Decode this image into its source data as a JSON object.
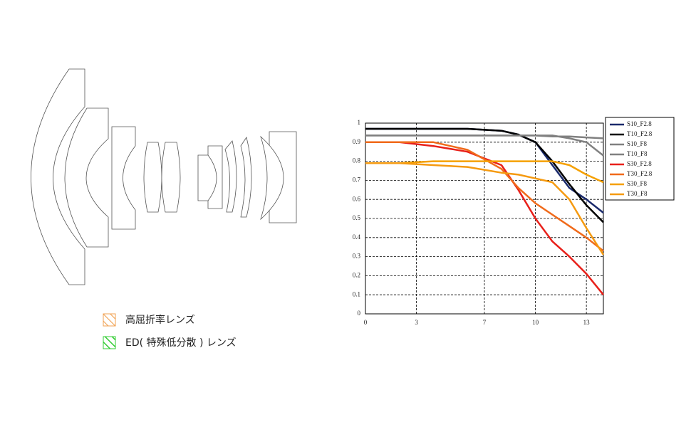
{
  "lens_legend": [
    {
      "label": "高屈折率レンズ",
      "color": "#f0a050"
    },
    {
      "label": "ED( 特殊低分散 ) レンズ",
      "color": "#33cc33"
    }
  ],
  "chart_data": {
    "type": "line",
    "x": [
      0,
      2,
      4,
      6,
      8,
      9,
      10,
      11,
      12,
      13,
      14
    ],
    "xlim": [
      0,
      14
    ],
    "xticks": [
      0,
      3,
      7,
      10,
      13
    ],
    "ylim": [
      0,
      1
    ],
    "yticks": [
      0,
      0.1,
      0.2,
      0.3,
      0.4,
      0.5,
      0.6,
      0.7,
      0.8,
      0.9,
      1
    ],
    "grid": true,
    "series": [
      {
        "name": "S10_F2.8",
        "color": "#1a2a6c",
        "values": [
          0.97,
          0.97,
          0.97,
          0.97,
          0.96,
          0.94,
          0.9,
          0.78,
          0.66,
          0.6,
          0.53
        ]
      },
      {
        "name": "T10_F2.8",
        "color": "#000000",
        "values": [
          0.97,
          0.97,
          0.97,
          0.97,
          0.96,
          0.94,
          0.9,
          0.8,
          0.68,
          0.57,
          0.48
        ]
      },
      {
        "name": "S10_F8",
        "color": "#808080",
        "values": [
          0.935,
          0.935,
          0.935,
          0.935,
          0.935,
          0.935,
          0.935,
          0.93,
          0.93,
          0.925,
          0.92
        ]
      },
      {
        "name": "T10_F8",
        "color": "#808080",
        "values": [
          0.935,
          0.935,
          0.935,
          0.935,
          0.935,
          0.935,
          0.935,
          0.935,
          0.92,
          0.9,
          0.83
        ]
      },
      {
        "name": "S30_F2.8",
        "color": "#e8201a",
        "values": [
          0.9,
          0.9,
          0.88,
          0.85,
          0.78,
          0.65,
          0.5,
          0.38,
          0.3,
          0.21,
          0.1
        ]
      },
      {
        "name": "T30_F2.8",
        "color": "#f06a1a",
        "values": [
          0.9,
          0.9,
          0.9,
          0.86,
          0.76,
          0.66,
          0.58,
          0.52,
          0.46,
          0.4,
          0.33
        ]
      },
      {
        "name": "S30_F8",
        "color": "#f5a000",
        "values": [
          0.79,
          0.79,
          0.8,
          0.8,
          0.8,
          0.8,
          0.8,
          0.8,
          0.78,
          0.73,
          0.69
        ]
      },
      {
        "name": "T30_F8",
        "color": "#f59a10",
        "values": [
          0.79,
          0.79,
          0.78,
          0.77,
          0.74,
          0.73,
          0.71,
          0.69,
          0.6,
          0.45,
          0.31
        ]
      }
    ]
  }
}
